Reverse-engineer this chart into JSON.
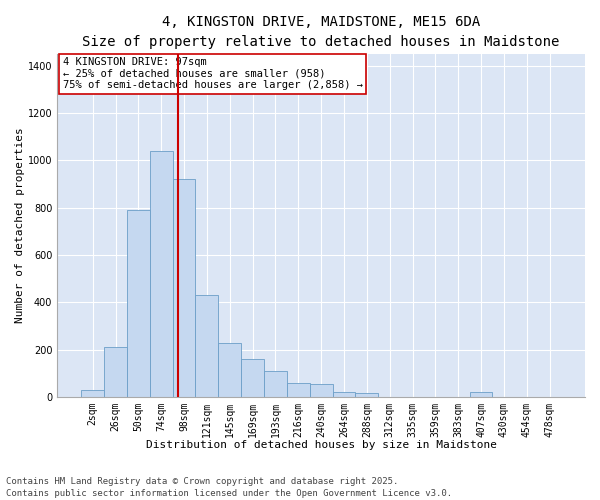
{
  "title_line1": "4, KINGSTON DRIVE, MAIDSTONE, ME15 6DA",
  "title_line2": "Size of property relative to detached houses in Maidstone",
  "xlabel": "Distribution of detached houses by size in Maidstone",
  "ylabel": "Number of detached properties",
  "categories": [
    "2sqm",
    "26sqm",
    "50sqm",
    "74sqm",
    "98sqm",
    "121sqm",
    "145sqm",
    "169sqm",
    "193sqm",
    "216sqm",
    "240sqm",
    "264sqm",
    "288sqm",
    "312sqm",
    "335sqm",
    "359sqm",
    "383sqm",
    "407sqm",
    "430sqm",
    "454sqm",
    "478sqm"
  ],
  "values": [
    30,
    210,
    790,
    1040,
    920,
    430,
    230,
    160,
    110,
    60,
    55,
    20,
    18,
    0,
    0,
    0,
    0,
    20,
    0,
    0,
    0
  ],
  "bar_color": "#c5d8f0",
  "bar_edge_color": "#6b9ec8",
  "vline_x_index": 3.75,
  "vline_color": "#cc0000",
  "ylim": [
    0,
    1450
  ],
  "yticks": [
    0,
    200,
    400,
    600,
    800,
    1000,
    1200,
    1400
  ],
  "background_color": "#dce6f5",
  "grid_color": "#ffffff",
  "annotation_text": "4 KINGSTON DRIVE: 97sqm\n← 25% of detached houses are smaller (958)\n75% of semi-detached houses are larger (2,858) →",
  "annotation_box_facecolor": "#ffffff",
  "annotation_box_edgecolor": "#cc0000",
  "footer_line1": "Contains HM Land Registry data © Crown copyright and database right 2025.",
  "footer_line2": "Contains public sector information licensed under the Open Government Licence v3.0.",
  "title_fontsize": 10,
  "subtitle_fontsize": 9,
  "axis_label_fontsize": 8,
  "tick_fontsize": 7,
  "annotation_fontsize": 7.5,
  "footer_fontsize": 6.5
}
